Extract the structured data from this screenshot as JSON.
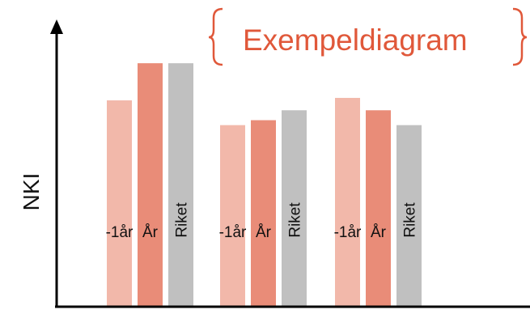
{
  "chart_data": {
    "type": "bar",
    "title": "Exempeldiagram",
    "ylabel": "NKI",
    "xlabel": "",
    "ylim": [
      0,
      100
    ],
    "grid": false,
    "legend": "none",
    "groups": [
      {
        "bars": [
          {
            "label": "-1år",
            "value": 83
          },
          {
            "label": "År",
            "value": 98
          },
          {
            "label": "Riket",
            "value": 98
          }
        ]
      },
      {
        "bars": [
          {
            "label": "-1år",
            "value": 73
          },
          {
            "label": "År",
            "value": 75
          },
          {
            "label": "Riket",
            "value": 79
          }
        ]
      },
      {
        "bars": [
          {
            "label": "-1år",
            "value": 84
          },
          {
            "label": "År",
            "value": 79
          },
          {
            "label": "Riket",
            "value": 73
          }
        ]
      }
    ],
    "series_colors": {
      "-1år": "#f2b8aa",
      "År": "#e98c78",
      "Riket": "#c0c0c0"
    },
    "title_color": "#e0583a"
  }
}
